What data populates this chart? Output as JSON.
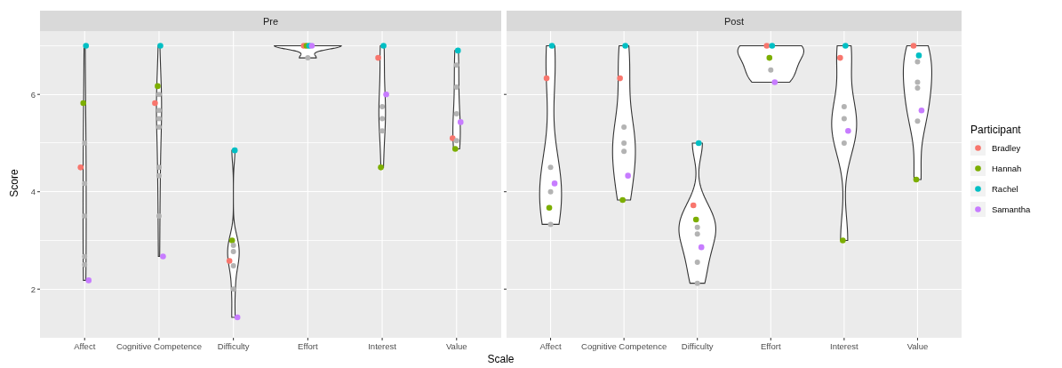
{
  "chart_data": [
    {
      "type": "scatter",
      "title": "Pre",
      "xlabel": "Scale",
      "ylabel": "Score",
      "categories": [
        "Affect",
        "Cognitive Competence",
        "Difficulty",
        "Effort",
        "Interest",
        "Value"
      ],
      "ylim": [
        1.0,
        7.3
      ],
      "yticks": [
        2,
        {
          "value": 3,
          "label": null
        },
        4,
        {
          "value": 5,
          "label": null
        },
        6,
        {
          "value": 7,
          "label": null
        }
      ],
      "grid": true,
      "legend": false,
      "marker": "circle",
      "series": [
        {
          "color": "#f8766d",
          "values": [
            4.5,
            5.82,
            2.58,
            7,
            6.75,
            5.1
          ]
        },
        {
          "color": "#7cae00",
          "values": [
            5.82,
            6.17,
            3.0,
            7,
            4.5,
            4.88
          ]
        },
        {
          "color": "#00bfc4",
          "values": [
            7,
            7,
            4.85,
            7,
            7,
            6.9
          ]
        },
        {
          "color": "#c77cff",
          "values": [
            2.18,
            2.67,
            1.42,
            7,
            6.0,
            5.43
          ]
        },
        {
          "color": "#b3b3b3",
          "x": [
            "Affect",
            "Affect",
            "Affect",
            "Affect",
            "Affect",
            "Cognitive Competence",
            "Cognitive Competence",
            "Cognitive Competence",
            "Cognitive Competence",
            "Cognitive Competence",
            "Cognitive Competence",
            "Cognitive Competence",
            "Difficulty",
            "Difficulty",
            "Difficulty",
            "Difficulty",
            "Effort",
            "Interest",
            "Interest",
            "Interest",
            "Value",
            "Value",
            "Value",
            "Value"
          ],
          "values": [
            5.0,
            4.17,
            3.5,
            2.67,
            2.5,
            6.0,
            5.67,
            5.5,
            5.33,
            4.5,
            4.33,
            3.5,
            2.9,
            2.77,
            2.48,
            2.0,
            6.75,
            5.75,
            5.5,
            5.25,
            6.6,
            6.15,
            5.6,
            5.05
          ]
        }
      ]
    },
    {
      "type": "scatter",
      "title": "Post",
      "categories": [
        "Affect",
        "Cognitive Competence",
        "Difficulty",
        "Effort",
        "Interest",
        "Value"
      ],
      "ylim": [
        1.0,
        7.3
      ],
      "yticks": [
        2,
        {
          "value": 3,
          "label": null
        },
        4,
        {
          "value": 5,
          "label": null
        },
        6,
        {
          "value": 7,
          "label": null
        }
      ],
      "grid": true,
      "legend": "right",
      "legend_title": "Participant",
      "marker": "circle",
      "tick_labels": "x",
      "series": [
        {
          "name": "Bradley",
          "color": "#f8766d",
          "values": [
            6.33,
            6.33,
            3.72,
            7,
            6.75,
            7
          ]
        },
        {
          "name": "Hannah",
          "color": "#7cae00",
          "values": [
            3.67,
            3.83,
            3.43,
            6.75,
            3.0,
            4.25
          ]
        },
        {
          "name": "Rachel",
          "color": "#00bfc4",
          "values": [
            7,
            7,
            5.0,
            7,
            7,
            6.8
          ]
        },
        {
          "name": "Samantha",
          "color": "#c77cff",
          "values": [
            4.17,
            4.33,
            2.86,
            6.25,
            5.25,
            5.67
          ]
        },
        {
          "color": "#b3b3b3",
          "x": [
            "Affect",
            "Affect",
            "Affect",
            "Cognitive Competence",
            "Cognitive Competence",
            "Cognitive Competence",
            "Difficulty",
            "Difficulty",
            "Difficulty",
            "Difficulty",
            "Effort",
            "Interest",
            "Interest",
            "Interest",
            "Value",
            "Value",
            "Value",
            "Value"
          ],
          "values": [
            4.5,
            4.0,
            3.33,
            5.33,
            5.0,
            4.83,
            3.27,
            3.13,
            2.55,
            2.12,
            6.5,
            5.75,
            5.5,
            5.0,
            6.67,
            6.25,
            6.13,
            5.45
          ]
        }
      ]
    }
  ]
}
